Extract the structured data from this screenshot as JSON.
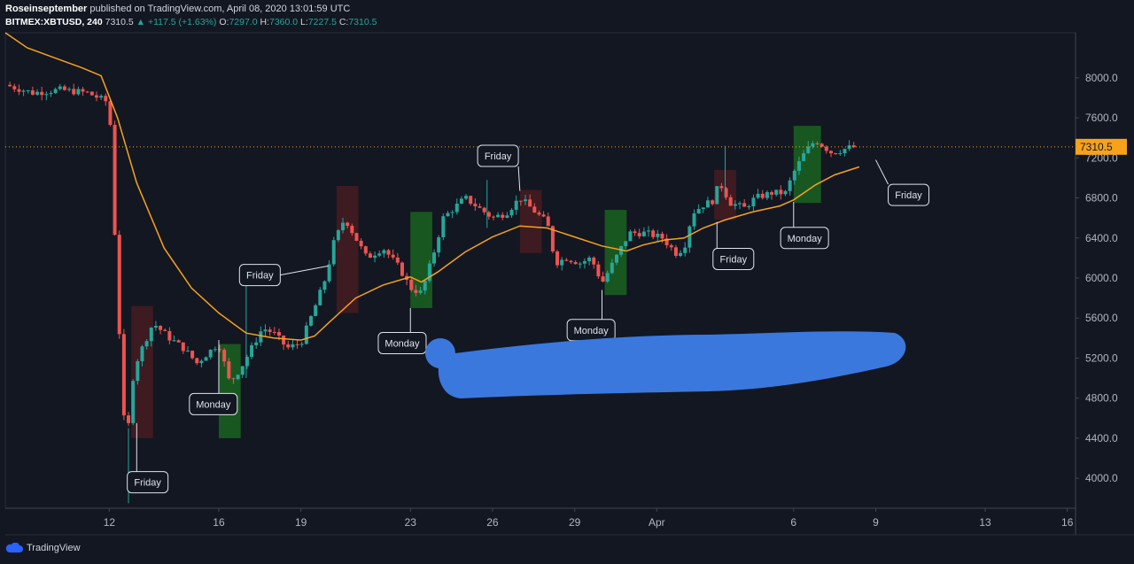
{
  "header": {
    "author": "Roseinseptember",
    "published": "published on TradingView.com, April 08, 2020 13:01:59 UTC",
    "symbol": "BITMEX:XBTUSD, 240",
    "last": "7310.5",
    "change": "▲ +117.5 (+1.63%)",
    "o_label": "O:",
    "o": "7297.0",
    "h_label": "H:",
    "h": "7360.0",
    "l_label": "L:",
    "l": "7227.5",
    "c_label": "C:",
    "c": "7310.5"
  },
  "footer": {
    "brand": "TradingView",
    "icon": "tradingview-cloud-icon"
  },
  "colors": {
    "background": "#131722",
    "up": "#26a69a",
    "down": "#ef5350",
    "ma": "#f7a21b",
    "price_line": "#f7a21b",
    "redact": "#3a78de",
    "green_zone": "#1b5e20",
    "red_zone": "#4a1c22"
  },
  "chart_data": {
    "type": "candlestick",
    "interval": "240",
    "ylim": [
      3700,
      8450
    ],
    "y_ticks": [
      "8000.0",
      "7600.0",
      "7200.0",
      "6800.0",
      "6400.0",
      "6000.0",
      "5600.0",
      "5200.0",
      "4800.0",
      "4400.0",
      "4000.0"
    ],
    "x_ticks": [
      {
        "label": "12",
        "day": 12
      },
      {
        "label": "16",
        "day": 16
      },
      {
        "label": "19",
        "day": 19
      },
      {
        "label": "23",
        "day": 23
      },
      {
        "label": "26",
        "day": 26
      },
      {
        "label": "29",
        "day": 29
      },
      {
        "label": "Apr",
        "day": 32
      },
      {
        "label": "6",
        "day": 37
      },
      {
        "label": "9",
        "day": 40
      },
      {
        "label": "13",
        "day": 44
      },
      {
        "label": "16",
        "day": 47
      }
    ],
    "xlim_days": [
      8.2,
      47.3
    ],
    "last_price": {
      "value": 7310.5,
      "label": "7310.5"
    },
    "close_path": [
      [
        8.2,
        7930
      ],
      [
        9.2,
        7850
      ],
      [
        10.2,
        7880
      ],
      [
        11.2,
        7850
      ],
      [
        12.0,
        7750
      ],
      [
        12.3,
        5800
      ],
      [
        12.6,
        4250
      ],
      [
        12.9,
        5100
      ],
      [
        13.2,
        5300
      ],
      [
        13.6,
        5550
      ],
      [
        14.2,
        5400
      ],
      [
        14.7,
        5300
      ],
      [
        15.2,
        5150
      ],
      [
        15.6,
        5250
      ],
      [
        16.0,
        5350
      ],
      [
        16.4,
        4950
      ],
      [
        16.8,
        5100
      ],
      [
        17.2,
        5300
      ],
      [
        17.6,
        5500
      ],
      [
        18.0,
        5450
      ],
      [
        18.5,
        5300
      ],
      [
        19.0,
        5350
      ],
      [
        19.5,
        5700
      ],
      [
        19.9,
        6000
      ],
      [
        20.2,
        6350
      ],
      [
        20.6,
        6600
      ],
      [
        21.0,
        6400
      ],
      [
        21.4,
        6200
      ],
      [
        22.0,
        6300
      ],
      [
        22.6,
        6100
      ],
      [
        23.0,
        5900
      ],
      [
        23.4,
        5850
      ],
      [
        23.8,
        6200
      ],
      [
        24.2,
        6600
      ],
      [
        24.6,
        6700
      ],
      [
        25.0,
        6800
      ],
      [
        25.5,
        6700
      ],
      [
        26.0,
        6600
      ],
      [
        26.5,
        6650
      ],
      [
        27.0,
        6800
      ],
      [
        27.4,
        6700
      ],
      [
        28.0,
        6550
      ],
      [
        28.3,
        6150
      ],
      [
        28.7,
        6200
      ],
      [
        29.2,
        6150
      ],
      [
        29.6,
        6200
      ],
      [
        30.0,
        5950
      ],
      [
        30.3,
        6100
      ],
      [
        30.6,
        6250
      ],
      [
        31.0,
        6450
      ],
      [
        31.6,
        6450
      ],
      [
        32.2,
        6400
      ],
      [
        32.7,
        6250
      ],
      [
        33.0,
        6300
      ],
      [
        33.3,
        6650
      ],
      [
        33.8,
        6750
      ],
      [
        34.0,
        6750
      ],
      [
        34.3,
        6950
      ],
      [
        34.7,
        6750
      ],
      [
        35.2,
        6700
      ],
      [
        35.6,
        6800
      ],
      [
        36.2,
        6850
      ],
      [
        36.7,
        6850
      ],
      [
        37.0,
        7050
      ],
      [
        37.4,
        7250
      ],
      [
        37.8,
        7380
      ],
      [
        38.4,
        7250
      ],
      [
        39.0,
        7300
      ],
      [
        39.3,
        7310.5
      ]
    ],
    "moving_average": [
      [
        8.2,
        8450
      ],
      [
        9.0,
        8300
      ],
      [
        10.0,
        8200
      ],
      [
        11.0,
        8100
      ],
      [
        11.7,
        8020
      ],
      [
        12.3,
        7600
      ],
      [
        13.0,
        6950
      ],
      [
        14.0,
        6300
      ],
      [
        15.0,
        5900
      ],
      [
        16.0,
        5650
      ],
      [
        17.0,
        5450
      ],
      [
        18.0,
        5400
      ],
      [
        19.0,
        5380
      ],
      [
        19.5,
        5420
      ],
      [
        20.0,
        5550
      ],
      [
        21.0,
        5800
      ],
      [
        22.0,
        5930
      ],
      [
        23.0,
        6010
      ],
      [
        23.4,
        5960
      ],
      [
        24.0,
        6060
      ],
      [
        25.0,
        6260
      ],
      [
        26.0,
        6410
      ],
      [
        27.0,
        6520
      ],
      [
        28.0,
        6500
      ],
      [
        29.0,
        6410
      ],
      [
        30.0,
        6320
      ],
      [
        30.9,
        6270
      ],
      [
        31.5,
        6330
      ],
      [
        32.3,
        6380
      ],
      [
        33.0,
        6400
      ],
      [
        33.7,
        6500
      ],
      [
        34.5,
        6580
      ],
      [
        35.5,
        6660
      ],
      [
        36.5,
        6720
      ],
      [
        37.0,
        6780
      ],
      [
        37.8,
        6930
      ],
      [
        38.5,
        7030
      ],
      [
        39.4,
        7110
      ]
    ],
    "zones": [
      {
        "color": "red",
        "x0": 12.8,
        "x1": 13.6,
        "y0": 4400,
        "y1": 5720
      },
      {
        "color": "green",
        "x0": 16.0,
        "x1": 16.8,
        "y0": 4400,
        "y1": 5340
      },
      {
        "color": "red",
        "x0": 20.3,
        "x1": 21.1,
        "y0": 5650,
        "y1": 6920
      },
      {
        "color": "green",
        "x0": 23.0,
        "x1": 23.8,
        "y0": 5700,
        "y1": 6660
      },
      {
        "color": "red",
        "x0": 27.0,
        "x1": 27.8,
        "y0": 6250,
        "y1": 6880
      },
      {
        "color": "green",
        "x0": 30.1,
        "x1": 30.9,
        "y0": 5830,
        "y1": 6680
      },
      {
        "color": "red",
        "x0": 34.1,
        "x1": 34.9,
        "y0": 6580,
        "y1": 7080
      },
      {
        "color": "green",
        "x0": 37.0,
        "x1": 38.0,
        "y0": 6750,
        "y1": 7520
      }
    ],
    "annotations": [
      {
        "text": "Friday",
        "day": 13.4,
        "price": 3960,
        "target_day": 13.0,
        "target_price": 4550
      },
      {
        "text": "Monday",
        "day": 15.8,
        "price": 4740,
        "target_day": 16.0,
        "target_price": 5380
      },
      {
        "text": "Friday",
        "day": 17.5,
        "price": 6030,
        "target_day": 20.0,
        "target_price": 6120
      },
      {
        "text": "Monday",
        "day": 22.7,
        "price": 5350,
        "target_day": 23.0,
        "target_price": 5700
      },
      {
        "text": "Friday",
        "day": 26.2,
        "price": 7220,
        "target_day": 27.0,
        "target_price": 6870
      },
      {
        "text": "Monday",
        "day": 29.6,
        "price": 5480,
        "target_day": 30.0,
        "target_price": 5880
      },
      {
        "text": "Friday",
        "day": 34.8,
        "price": 6190,
        "target_day": 34.2,
        "target_price": 6560
      },
      {
        "text": "Monday",
        "day": 37.4,
        "price": 6400,
        "target_day": 37.0,
        "target_price": 6760
      },
      {
        "text": "Friday",
        "day": 41.2,
        "price": 6830,
        "target_day": 40.0,
        "target_price": 7180
      }
    ]
  }
}
